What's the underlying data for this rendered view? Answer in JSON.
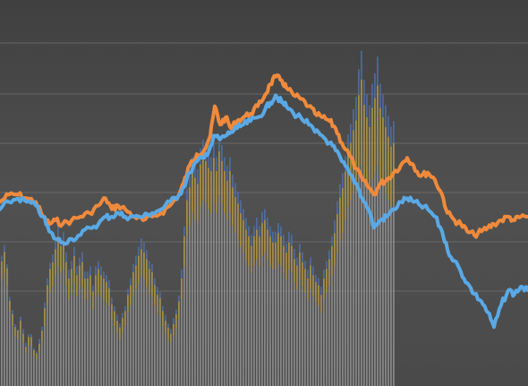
{
  "chart_data": {
    "type": "line",
    "title": "",
    "xlabel": "",
    "ylabel": "",
    "grid": true,
    "legend": "none",
    "colors": {
      "background": "#4a4a4a",
      "grid": "#6e6e6e",
      "orange_line": "#f08a3c",
      "blue_line": "#5aa9e6",
      "bar_gray": "#9a9a9a",
      "bar_blue": "#4f6fa8",
      "bar_gold": "#b8962e"
    },
    "line_ylim": [
      0,
      100
    ],
    "bar_ylim": [
      0,
      100
    ],
    "series": [
      {
        "key": "orange",
        "x": [
          0,
          10,
          20,
          30,
          40,
          48,
          55,
          62,
          70,
          80,
          90,
          100,
          110,
          118,
          125,
          132,
          140,
          150,
          160,
          170,
          180,
          190,
          200,
          205,
          212,
          220,
          228,
          235,
          240,
          246,
          252,
          258,
          265,
          272,
          280,
          288,
          296,
          302,
          308,
          315,
          320,
          328,
          336,
          345,
          352,
          360,
          368,
          375,
          382,
          390,
          398,
          405,
          412,
          418,
          425,
          432,
          440,
          448,
          455,
          462,
          470,
          478,
          486,
          494,
          500,
          508,
          515,
          522,
          530,
          538,
          545,
          552,
          560,
          568,
          575,
          582,
          590
        ],
        "values": [
          50,
          52,
          52,
          51,
          50,
          46,
          44,
          45,
          44,
          45,
          46,
          47,
          49,
          51,
          48,
          49,
          48,
          46,
          45,
          46,
          47,
          49,
          52,
          55,
          60,
          63,
          64,
          68,
          76,
          71,
          73,
          70,
          72,
          73,
          74,
          76,
          79,
          82,
          84,
          83,
          81,
          79,
          78,
          76,
          74,
          73,
          72,
          70,
          66,
          63,
          59,
          56,
          54,
          52,
          55,
          56,
          58,
          60,
          62,
          60,
          57,
          58,
          56,
          52,
          47,
          45,
          44,
          42,
          41,
          42,
          43,
          44,
          45,
          46,
          45,
          46,
          46
        ]
      },
      {
        "key": "blue",
        "x": [
          0,
          10,
          20,
          30,
          40,
          48,
          55,
          62,
          70,
          80,
          90,
          100,
          110,
          118,
          125,
          132,
          140,
          150,
          160,
          170,
          180,
          190,
          200,
          205,
          212,
          220,
          228,
          235,
          240,
          246,
          252,
          258,
          265,
          272,
          280,
          288,
          296,
          302,
          308,
          315,
          320,
          328,
          336,
          345,
          352,
          360,
          368,
          375,
          382,
          390,
          398,
          405,
          412,
          418,
          425,
          432,
          440,
          448,
          455,
          462,
          470,
          478,
          486,
          494,
          500,
          508,
          515,
          522,
          530,
          538,
          545,
          552,
          560,
          568,
          575,
          582,
          590
        ],
        "values": [
          48,
          50,
          51,
          50,
          49,
          46,
          42,
          40,
          39,
          40,
          41,
          43,
          44,
          46,
          46,
          47,
          46,
          46,
          46,
          47,
          48,
          50,
          52,
          54,
          58,
          61,
          62,
          65,
          68,
          67,
          68,
          69,
          70,
          71,
          72,
          73,
          75,
          77,
          79,
          77,
          76,
          74,
          73,
          71,
          69,
          68,
          66,
          64,
          61,
          58,
          55,
          51,
          48,
          43,
          45,
          46,
          48,
          50,
          51,
          50,
          49,
          48,
          46,
          42,
          37,
          34,
          31,
          28,
          25,
          23,
          20,
          16,
          22,
          26,
          25,
          27,
          26
        ]
      }
    ],
    "bars": {
      "step": 3,
      "gray": [
        32,
        34,
        30,
        22,
        18,
        15,
        14,
        16,
        13,
        10,
        12,
        12,
        9,
        8,
        10,
        13,
        18,
        24,
        28,
        30,
        33,
        36,
        34,
        35,
        30,
        26,
        28,
        31,
        27,
        29,
        30,
        26,
        26,
        27,
        23,
        27,
        28,
        27,
        26,
        25,
        24,
        20,
        18,
        16,
        14,
        16,
        18,
        22,
        24,
        27,
        29,
        31,
        33,
        32,
        30,
        28,
        27,
        24,
        22,
        21,
        18,
        16,
        14,
        13,
        15,
        17,
        20,
        26,
        36,
        45,
        48,
        52,
        50,
        49,
        54,
        56,
        55,
        53,
        52,
        55,
        52,
        57,
        55,
        52,
        50,
        52,
        48,
        46,
        44,
        42,
        40,
        38,
        36,
        34,
        36,
        38,
        36,
        39,
        40,
        38,
        36,
        35,
        35,
        37,
        36,
        34,
        32,
        35,
        34,
        31,
        29,
        32,
        30,
        28,
        26,
        29,
        27,
        25,
        24,
        22,
        26,
        28,
        30,
        33,
        36,
        40,
        44,
        46,
        50,
        54,
        56,
        58,
        60,
        64,
        66,
        62,
        60,
        58,
        62,
        64,
        66,
        62,
        60,
        58,
        56,
        54,
        55
      ],
      "blue": [
        12,
        14,
        11,
        8,
        8,
        6,
        5,
        8,
        7,
        5,
        6,
        6,
        4,
        4,
        7,
        8,
        12,
        14,
        15,
        16,
        18,
        20,
        18,
        19,
        17,
        15,
        16,
        18,
        15,
        16,
        17,
        14,
        14,
        15,
        12,
        15,
        16,
        15,
        14,
        14,
        13,
        11,
        10,
        9,
        8,
        10,
        10,
        12,
        14,
        16,
        17,
        18,
        19,
        19,
        18,
        16,
        16,
        14,
        13,
        12,
        10,
        9,
        8,
        7,
        9,
        10,
        12,
        15,
        20,
        24,
        26,
        28,
        28,
        27,
        29,
        30,
        29,
        28,
        28,
        30,
        28,
        30,
        29,
        28,
        27,
        28,
        26,
        25,
        24,
        23,
        22,
        21,
        20,
        19,
        20,
        21,
        20,
        22,
        22,
        21,
        20,
        19,
        19,
        20,
        20,
        19,
        18,
        19,
        19,
        17,
        16,
        18,
        17,
        16,
        15,
        16,
        15,
        14,
        14,
        13,
        15,
        16,
        18,
        20,
        23,
        26,
        28,
        30,
        32,
        36,
        38,
        42,
        45,
        52,
        58,
        50,
        46,
        44,
        48,
        50,
        55,
        48,
        46,
        44,
        42,
        40,
        41
      ],
      "gold": [
        6,
        7,
        6,
        4,
        4,
        3,
        3,
        4,
        3,
        2,
        3,
        3,
        2,
        2,
        3,
        4,
        6,
        7,
        8,
        8,
        9,
        10,
        9,
        9,
        8,
        7,
        8,
        9,
        7,
        8,
        8,
        7,
        7,
        7,
        6,
        7,
        8,
        7,
        7,
        7,
        6,
        5,
        5,
        4,
        4,
        5,
        5,
        6,
        7,
        8,
        8,
        9,
        9,
        9,
        9,
        8,
        8,
        7,
        6,
        6,
        5,
        4,
        4,
        3,
        4,
        5,
        6,
        7,
        10,
        12,
        13,
        14,
        14,
        13,
        14,
        15,
        14,
        14,
        14,
        15,
        14,
        15,
        14,
        14,
        13,
        14,
        13,
        12,
        12,
        11,
        11,
        10,
        10,
        9,
        10,
        10,
        10,
        11,
        11,
        10,
        10,
        9,
        9,
        10,
        10,
        9,
        9,
        9,
        9,
        8,
        8,
        9,
        8,
        8,
        7,
        8,
        7,
        7,
        7,
        6,
        7,
        8,
        9,
        10,
        11,
        13,
        14,
        15,
        16,
        18,
        19,
        21,
        22,
        26,
        29,
        25,
        23,
        22,
        24,
        25,
        27,
        24,
        23,
        22,
        21,
        20,
        20
      ]
    }
  }
}
